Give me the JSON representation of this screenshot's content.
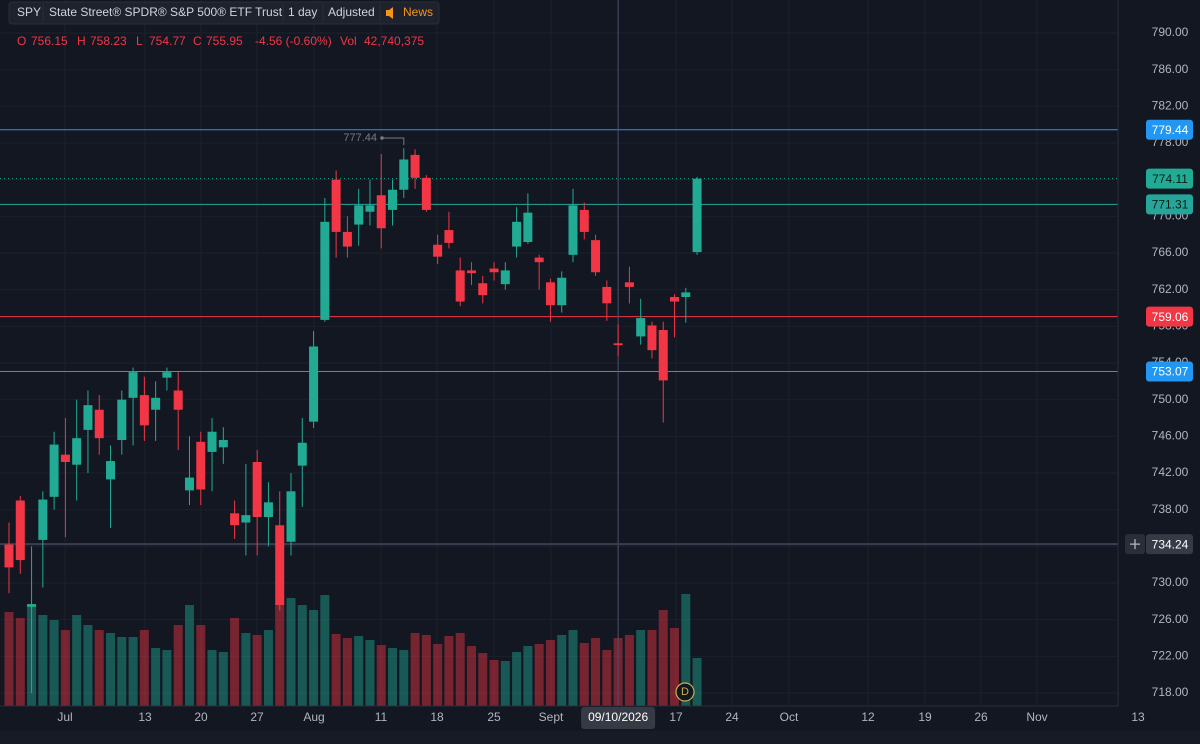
{
  "header": {
    "symbol": "SPY",
    "name": "State Street® SPDR® S&P 500® ETF Trust",
    "interval": "1 day",
    "adjustment": "Adjusted",
    "news": "News"
  },
  "legend": {
    "o_label": "O",
    "o": "756.15",
    "h_label": "H",
    "h": "758.23",
    "l_label": "L",
    "l": "754.77",
    "c_label": "C",
    "c": "755.95",
    "change": "-4.56 (-0.60%)",
    "vol_label": "Vol",
    "vol": "42,740,375"
  },
  "chart_data": {
    "type": "candlestick",
    "open": [
      734.2,
      739,
      727.4,
      734.7,
      739.4,
      744,
      742.9,
      746.7,
      748.9,
      741.3,
      745.6,
      750.2,
      750.5,
      748.9,
      752.4,
      751,
      740.1,
      745.4,
      744.3,
      744.8,
      737.6,
      736.6,
      743.2,
      737.2,
      736.3,
      734.5,
      742.8,
      747.6,
      758.7,
      774,
      768.3,
      769.1,
      770.5,
      772.3,
      770.7,
      772.9,
      776.7,
      774.2,
      766.9,
      768.5,
      764.1,
      764.1,
      762.7,
      764.3,
      762.6,
      766.7,
      767.2,
      765.5,
      762.8,
      760.3,
      765.8,
      770.7,
      767.4,
      762.3,
      756.15,
      762.8,
      756.9,
      758.1,
      757.6,
      761.2,
      761.2,
      766.1
    ],
    "high": [
      736.6,
      739.5,
      734,
      740,
      746.5,
      748,
      750,
      751,
      750.5,
      745,
      751,
      753.5,
      752.5,
      752,
      753.5,
      753,
      746,
      746.5,
      748,
      747,
      739,
      743,
      744.5,
      741,
      740,
      742,
      748,
      757.5,
      772,
      775,
      770,
      773,
      774,
      776.8,
      774,
      777.44,
      777.3,
      774.5,
      768,
      770.5,
      765.5,
      765,
      763.5,
      765,
      765,
      771,
      772.5,
      765.8,
      763.2,
      764,
      773,
      771.5,
      768,
      763,
      758.23,
      764.5,
      761,
      758.5,
      758.5,
      761.5,
      762.2,
      774.3
    ],
    "low": [
      728.9,
      731,
      718,
      729.5,
      738,
      735,
      739,
      742,
      744,
      736,
      744,
      745,
      745.5,
      745.5,
      751,
      744.5,
      738.5,
      738.5,
      740,
      743,
      734.8,
      733,
      733,
      734,
      727,
      733,
      738.3,
      746.9,
      758.5,
      765.5,
      765.5,
      766.8,
      769,
      766.5,
      769,
      772,
      773,
      770.5,
      764.8,
      766.5,
      760.2,
      762.5,
      760.5,
      763,
      762,
      765.5,
      767,
      762,
      758.5,
      759.5,
      765,
      767.5,
      763.5,
      758.6,
      754.77,
      760.5,
      756,
      754.5,
      747.5,
      756.8,
      758.4,
      765.8
    ],
    "close": [
      731.7,
      732.5,
      727.7,
      739.1,
      745.1,
      743.2,
      745.8,
      749.4,
      745.8,
      743.3,
      750,
      753,
      747.2,
      750.2,
      753,
      748.9,
      741.5,
      740.2,
      746.5,
      745.6,
      736.3,
      737.4,
      737.2,
      738.8,
      727.6,
      740,
      745.3,
      755.8,
      769.4,
      768.3,
      766.7,
      771.2,
      771.2,
      768.7,
      772.9,
      776.2,
      774.2,
      770.7,
      765.6,
      767.1,
      760.7,
      763.8,
      761.4,
      763.9,
      764.1,
      769.4,
      770.4,
      765,
      760.3,
      763.3,
      771.2,
      768.3,
      763.9,
      760.51,
      755.95,
      762.3,
      758.9,
      755.4,
      752.1,
      760.7,
      761.7,
      774.11
    ],
    "volume": [
      59080000,
      55310000,
      62850000,
      57190000,
      54050000,
      47770000,
      57190000,
      50910000,
      47770000,
      45880000,
      43370000,
      43370000,
      47770000,
      36450000,
      35200000,
      50910000,
      63480000,
      50910000,
      35200000,
      33940000,
      55310000,
      45880000,
      44620000,
      47770000,
      64110000,
      67880000,
      63480000,
      60340000,
      69760000,
      45250000,
      42740000,
      44000000,
      41480000,
      38340000,
      36450000,
      35200000,
      45880000,
      44620000,
      38970000,
      44000000,
      45880000,
      37710000,
      33310000,
      28910000,
      28280000,
      33940000,
      37710000,
      38970000,
      41480000,
      44620000,
      47770000,
      39600000,
      42740000,
      35200000,
      42740375,
      44620000,
      47770000,
      47770000,
      60340000,
      49020000,
      70390000,
      30170000
    ],
    "up_color": "#22ab94",
    "down_color": "#f23645",
    "ylim": [
      716.58,
      793.6
    ],
    "volume_lim": [
      0,
      443700000
    ],
    "yticks": [
      {
        "value": 718,
        "label": "718.00"
      },
      {
        "value": 722,
        "label": "722.00"
      },
      {
        "value": 726,
        "label": "726.00"
      },
      {
        "value": 730,
        "label": "730.00"
      },
      {
        "value": 734,
        "label": "734.00"
      },
      {
        "value": 738,
        "label": "738.00"
      },
      {
        "value": 742,
        "label": "742.00"
      },
      {
        "value": 746,
        "label": "746.00"
      },
      {
        "value": 750,
        "label": "750.00"
      },
      {
        "value": 754,
        "label": "754.00"
      },
      {
        "value": 758,
        "label": "758.00"
      },
      {
        "value": 762,
        "label": "762.00"
      },
      {
        "value": 766,
        "label": "766.00"
      },
      {
        "value": 770,
        "label": "770.00"
      },
      {
        "value": 774,
        "label": "774.00"
      },
      {
        "value": 778,
        "label": "778.00"
      },
      {
        "value": 782,
        "label": "782.00"
      },
      {
        "value": 786,
        "label": "786.00"
      },
      {
        "value": 790,
        "label": "790.00"
      }
    ],
    "x_labels": [
      "Jul",
      "13",
      "20",
      "27",
      "Aug",
      "11",
      "18",
      "25",
      "Sept",
      "17",
      "24",
      "Oct",
      "12",
      "19",
      "26",
      "Nov",
      "13"
    ],
    "price_lines": [
      {
        "value": 779.44,
        "color": "#2196f3"
      },
      {
        "value": 774.11,
        "color": "#22ab94"
      },
      {
        "value": 771.31,
        "color": "#26a69a"
      },
      {
        "value": 759.06,
        "color": "#f23645"
      },
      {
        "value": 753.07,
        "color": "#2196f3"
      }
    ],
    "max_label": "777.44",
    "crosshair": {
      "date": "09/10/2026",
      "price": 734.24
    },
    "event_marker": "D"
  }
}
